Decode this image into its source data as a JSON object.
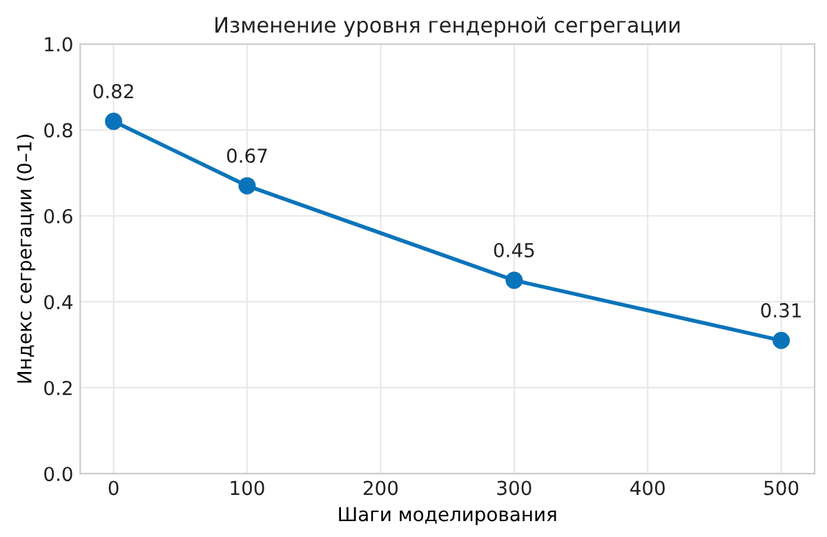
{
  "chart_data": {
    "type": "line",
    "title": "Изменение уровня гендерной сегрегации",
    "xlabel": "Шаги моделирования",
    "ylabel": "Индекс сегрегации (0–1)",
    "x": [
      0,
      100,
      300,
      500
    ],
    "series": [
      {
        "color": "#0a74ba",
        "values": [
          0.82,
          0.67,
          0.45,
          0.31
        ]
      }
    ],
    "xlim": [
      -25,
      525
    ],
    "xticks": [
      0,
      100,
      200,
      300,
      400,
      500
    ],
    "ylim": [
      0,
      1
    ],
    "yticks": [
      {
        "value": 0,
        "label": "0.0"
      },
      0.2,
      0.4,
      0.6,
      0.8,
      {
        "value": 1,
        "label": "1.0"
      }
    ],
    "grid": true,
    "marker": "circle",
    "line_style": "solid",
    "data_labels": true
  }
}
